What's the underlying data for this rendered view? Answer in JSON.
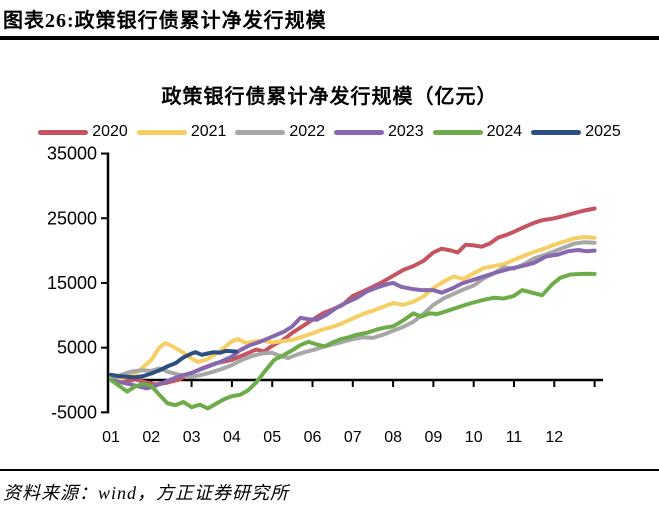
{
  "header": {
    "title": "图表26:政策银行债累计净发行规模"
  },
  "footer": {
    "source": "资料来源：wind，方正证券研究所"
  },
  "chart_data": {
    "type": "line",
    "title": "政策银行债累计净发行规模（亿元）",
    "unit": "亿元",
    "xlabel": "",
    "ylabel": "",
    "x_unit": "month (01-12, weekly cumulative net issuance)",
    "ylim": [
      -5000,
      35000
    ],
    "yticks": [
      35000,
      25000,
      15000,
      5000,
      -5000
    ],
    "xticks": [
      "01",
      "02",
      "03",
      "04",
      "05",
      "06",
      "07",
      "08",
      "09",
      "10",
      "11",
      "12"
    ],
    "grid": false,
    "legend_position": "top",
    "axis_color": "#000000",
    "series": [
      {
        "name": "2020",
        "color": "#C4545F",
        "points": [
          [
            1,
            100
          ],
          [
            1.3,
            -300
          ],
          [
            1.6,
            100
          ],
          [
            1.9,
            -400
          ],
          [
            2.1,
            -700
          ],
          [
            2.4,
            -400
          ],
          [
            2.7,
            100
          ],
          [
            3,
            1100
          ],
          [
            3.3,
            1900
          ],
          [
            3.6,
            2600
          ],
          [
            4,
            3100
          ],
          [
            4.3,
            3900
          ],
          [
            4.6,
            4700
          ],
          [
            4.8,
            4400
          ],
          [
            5,
            5300
          ],
          [
            5.25,
            6100
          ],
          [
            5.5,
            7300
          ],
          [
            5.75,
            8300
          ],
          [
            6,
            9300
          ],
          [
            6.25,
            10300
          ],
          [
            6.5,
            10900
          ],
          [
            6.75,
            11600
          ],
          [
            7,
            13000
          ],
          [
            7.25,
            13700
          ],
          [
            7.5,
            14400
          ],
          [
            7.75,
            15200
          ],
          [
            8,
            16100
          ],
          [
            8.25,
            17000
          ],
          [
            8.5,
            17600
          ],
          [
            8.75,
            18400
          ],
          [
            9,
            19700
          ],
          [
            9.2,
            20300
          ],
          [
            9.45,
            20000
          ],
          [
            9.6,
            19700
          ],
          [
            9.8,
            20900
          ],
          [
            10,
            20800
          ],
          [
            10.2,
            20600
          ],
          [
            10.4,
            21100
          ],
          [
            10.6,
            22000
          ],
          [
            10.8,
            22400
          ],
          [
            11,
            22900
          ],
          [
            11.2,
            23500
          ],
          [
            11.5,
            24300
          ],
          [
            11.7,
            24700
          ],
          [
            12,
            25000
          ],
          [
            12.2,
            25300
          ],
          [
            12.5,
            25800
          ],
          [
            12.75,
            26200
          ],
          [
            13,
            26500
          ]
        ]
      },
      {
        "name": "2021",
        "color": "#F6CE63",
        "points": [
          [
            1,
            0
          ],
          [
            1.3,
            300
          ],
          [
            1.6,
            900
          ],
          [
            1.8,
            2000
          ],
          [
            2,
            3100
          ],
          [
            2.2,
            5000
          ],
          [
            2.35,
            5700
          ],
          [
            2.5,
            5300
          ],
          [
            2.75,
            4400
          ],
          [
            3,
            3300
          ],
          [
            3.15,
            2800
          ],
          [
            3.35,
            3100
          ],
          [
            3.5,
            3600
          ],
          [
            3.75,
            4700
          ],
          [
            4,
            6000
          ],
          [
            4.15,
            6300
          ],
          [
            4.35,
            5700
          ],
          [
            4.5,
            5900
          ],
          [
            4.75,
            6100
          ],
          [
            5,
            5800
          ],
          [
            5.25,
            6000
          ],
          [
            5.5,
            6200
          ],
          [
            5.75,
            6700
          ],
          [
            6,
            7200
          ],
          [
            6.25,
            7800
          ],
          [
            6.5,
            8200
          ],
          [
            6.75,
            8800
          ],
          [
            7,
            9500
          ],
          [
            7.25,
            10200
          ],
          [
            7.5,
            10700
          ],
          [
            7.75,
            11300
          ],
          [
            8,
            11900
          ],
          [
            8.25,
            11600
          ],
          [
            8.5,
            12100
          ],
          [
            8.75,
            12900
          ],
          [
            9,
            14200
          ],
          [
            9.25,
            15200
          ],
          [
            9.5,
            16000
          ],
          [
            9.75,
            15600
          ],
          [
            10,
            16500
          ],
          [
            10.25,
            17300
          ],
          [
            10.5,
            17600
          ],
          [
            10.75,
            17900
          ],
          [
            11,
            18600
          ],
          [
            11.25,
            19200
          ],
          [
            11.5,
            19800
          ],
          [
            11.75,
            20300
          ],
          [
            12,
            20900
          ],
          [
            12.25,
            21400
          ],
          [
            12.5,
            21900
          ],
          [
            12.75,
            22100
          ],
          [
            13,
            22000
          ]
        ]
      },
      {
        "name": "2022",
        "color": "#A7A7A7",
        "points": [
          [
            1,
            100
          ],
          [
            1.25,
            800
          ],
          [
            1.5,
            1300
          ],
          [
            1.75,
            1500
          ],
          [
            2,
            1400
          ],
          [
            2.2,
            1800
          ],
          [
            2.45,
            1200
          ],
          [
            2.7,
            800
          ],
          [
            3,
            500
          ],
          [
            3.25,
            800
          ],
          [
            3.5,
            1200
          ],
          [
            3.75,
            1700
          ],
          [
            4,
            2300
          ],
          [
            4.25,
            3100
          ],
          [
            4.5,
            3700
          ],
          [
            4.75,
            4100
          ],
          [
            5,
            4200
          ],
          [
            5.2,
            3700
          ],
          [
            5.4,
            3400
          ],
          [
            5.6,
            3900
          ],
          [
            5.8,
            4300
          ],
          [
            6,
            4600
          ],
          [
            6.25,
            5100
          ],
          [
            6.5,
            5500
          ],
          [
            6.75,
            5900
          ],
          [
            7,
            6300
          ],
          [
            7.25,
            6600
          ],
          [
            7.5,
            6500
          ],
          [
            7.75,
            7000
          ],
          [
            8,
            7600
          ],
          [
            8.25,
            8200
          ],
          [
            8.5,
            9000
          ],
          [
            8.75,
            10200
          ],
          [
            9,
            11600
          ],
          [
            9.25,
            12600
          ],
          [
            9.5,
            13300
          ],
          [
            9.75,
            14000
          ],
          [
            10,
            14600
          ],
          [
            10.25,
            15700
          ],
          [
            10.5,
            16500
          ],
          [
            10.75,
            17400
          ],
          [
            11,
            17200
          ],
          [
            11.25,
            17900
          ],
          [
            11.5,
            18800
          ],
          [
            11.75,
            19300
          ],
          [
            12,
            19900
          ],
          [
            12.25,
            20500
          ],
          [
            12.5,
            21100
          ],
          [
            12.75,
            21300
          ],
          [
            13,
            21200
          ]
        ]
      },
      {
        "name": "2023",
        "color": "#8768AE",
        "points": [
          [
            1,
            0
          ],
          [
            1.2,
            -300
          ],
          [
            1.5,
            -700
          ],
          [
            1.75,
            -1100
          ],
          [
            1.9,
            -1300
          ],
          [
            2.1,
            -900
          ],
          [
            2.3,
            -400
          ],
          [
            2.5,
            100
          ],
          [
            2.75,
            700
          ],
          [
            3,
            1100
          ],
          [
            3.25,
            1700
          ],
          [
            3.5,
            2300
          ],
          [
            3.75,
            2900
          ],
          [
            4,
            3600
          ],
          [
            4.2,
            4600
          ],
          [
            4.45,
            5400
          ],
          [
            4.7,
            5900
          ],
          [
            5,
            6700
          ],
          [
            5.3,
            7500
          ],
          [
            5.5,
            8300
          ],
          [
            5.7,
            9600
          ],
          [
            5.9,
            9400
          ],
          [
            6.1,
            9300
          ],
          [
            6.35,
            10100
          ],
          [
            6.6,
            11200
          ],
          [
            6.85,
            12000
          ],
          [
            7.1,
            12700
          ],
          [
            7.35,
            13700
          ],
          [
            7.6,
            14300
          ],
          [
            7.85,
            14800
          ],
          [
            8,
            15000
          ],
          [
            8.2,
            14400
          ],
          [
            8.45,
            14100
          ],
          [
            8.7,
            13900
          ],
          [
            9,
            13900
          ],
          [
            9.2,
            13500
          ],
          [
            9.45,
            14100
          ],
          [
            9.7,
            14900
          ],
          [
            10,
            15500
          ],
          [
            10.3,
            16100
          ],
          [
            10.6,
            16700
          ],
          [
            10.9,
            17200
          ],
          [
            11.2,
            17600
          ],
          [
            11.5,
            18100
          ],
          [
            11.8,
            19100
          ],
          [
            12.1,
            19400
          ],
          [
            12.35,
            19900
          ],
          [
            12.6,
            20100
          ],
          [
            12.8,
            19900
          ],
          [
            13,
            20000
          ]
        ]
      },
      {
        "name": "2024",
        "color": "#6EAC49",
        "points": [
          [
            1,
            0
          ],
          [
            1.2,
            -900
          ],
          [
            1.4,
            -1800
          ],
          [
            1.6,
            -1000
          ],
          [
            1.8,
            -600
          ],
          [
            2,
            -900
          ],
          [
            2.2,
            -2300
          ],
          [
            2.4,
            -3600
          ],
          [
            2.6,
            -3900
          ],
          [
            2.8,
            -3400
          ],
          [
            3,
            -4200
          ],
          [
            3.2,
            -3800
          ],
          [
            3.4,
            -4400
          ],
          [
            3.6,
            -3700
          ],
          [
            3.8,
            -3000
          ],
          [
            4,
            -2500
          ],
          [
            4.2,
            -2300
          ],
          [
            4.4,
            -1600
          ],
          [
            4.6,
            -400
          ],
          [
            4.8,
            1200
          ],
          [
            5.05,
            3100
          ],
          [
            5.3,
            3900
          ],
          [
            5.5,
            4600
          ],
          [
            5.7,
            5400
          ],
          [
            5.9,
            5900
          ],
          [
            6.1,
            5500
          ],
          [
            6.3,
            5200
          ],
          [
            6.5,
            5800
          ],
          [
            6.7,
            6300
          ],
          [
            6.9,
            6600
          ],
          [
            7.1,
            7000
          ],
          [
            7.35,
            7300
          ],
          [
            7.6,
            7800
          ],
          [
            7.8,
            8100
          ],
          [
            8,
            8300
          ],
          [
            8.25,
            9200
          ],
          [
            8.5,
            10300
          ],
          [
            8.7,
            9800
          ],
          [
            8.9,
            10300
          ],
          [
            9.1,
            10200
          ],
          [
            9.35,
            10700
          ],
          [
            9.6,
            11200
          ],
          [
            9.8,
            11600
          ],
          [
            10,
            12000
          ],
          [
            10.25,
            12400
          ],
          [
            10.5,
            12700
          ],
          [
            10.75,
            12600
          ],
          [
            11,
            13000
          ],
          [
            11.2,
            13900
          ],
          [
            11.45,
            13500
          ],
          [
            11.7,
            13100
          ],
          [
            11.95,
            14800
          ],
          [
            12.15,
            15800
          ],
          [
            12.4,
            16300
          ],
          [
            12.7,
            16400
          ],
          [
            13,
            16400
          ]
        ]
      },
      {
        "name": "2025",
        "color": "#2D4E80",
        "points": [
          [
            1,
            800
          ],
          [
            1.2,
            600
          ],
          [
            1.4,
            500
          ],
          [
            1.6,
            400
          ],
          [
            1.8,
            600
          ],
          [
            2,
            1000
          ],
          [
            2.2,
            1500
          ],
          [
            2.4,
            2100
          ],
          [
            2.6,
            2600
          ],
          [
            2.8,
            3500
          ],
          [
            3,
            4100
          ],
          [
            3.1,
            4300
          ],
          [
            3.25,
            3900
          ],
          [
            3.4,
            4100
          ],
          [
            3.55,
            4300
          ],
          [
            3.7,
            4200
          ],
          [
            3.85,
            4500
          ],
          [
            4.1,
            4400
          ]
        ]
      }
    ]
  }
}
